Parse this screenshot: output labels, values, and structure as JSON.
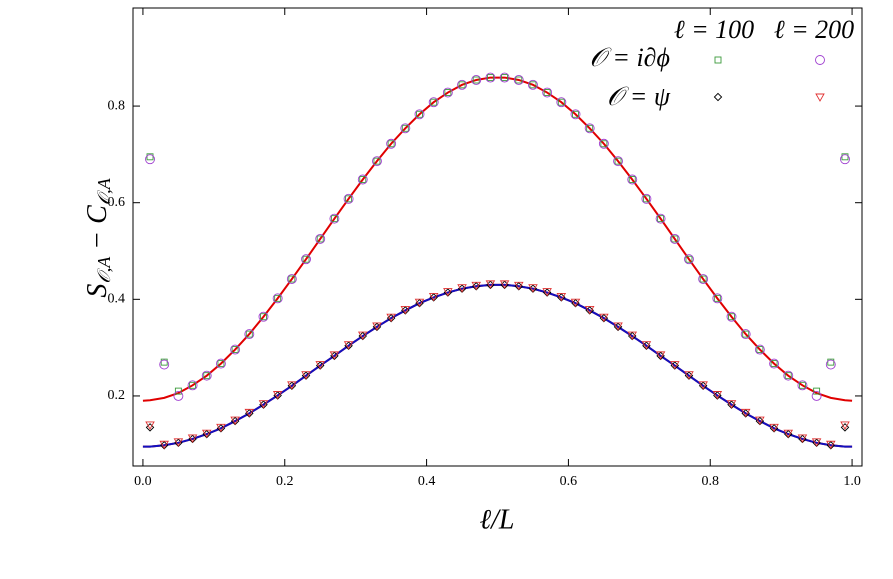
{
  "chart_data": {
    "type": "scatter",
    "xlabel": "ℓ/L",
    "ylabel": [
      "S",
      "𝒪,A",
      " − C",
      "𝒪,A"
    ],
    "legend": {
      "columns": [
        "ℓ = 100",
        "ℓ = 200"
      ],
      "rows": [
        "𝒪 = i∂ϕ",
        "𝒪 = ψ"
      ]
    },
    "xlim": [
      -0.014,
      1.014
    ],
    "ylim": [
      0.055,
      1.003
    ],
    "xticks": [
      {
        "value": 0,
        "label": "0.0"
      },
      0.2,
      0.4,
      0.6,
      0.8,
      {
        "value": 1,
        "label": "1.0"
      }
    ],
    "yticks": [
      0.2,
      0.4,
      0.6,
      0.8
    ],
    "x": [
      0,
      0.01,
      0.03,
      0.05,
      0.07,
      0.09,
      0.11,
      0.13,
      0.15,
      0.17,
      0.19,
      0.21,
      0.23,
      0.25,
      0.27,
      0.29,
      0.31,
      0.33,
      0.35,
      0.37,
      0.39,
      0.41,
      0.43,
      0.45,
      0.47,
      0.49,
      0.51,
      0.53,
      0.55,
      0.57,
      0.59,
      0.61,
      0.63,
      0.65,
      0.67,
      0.69,
      0.71,
      0.73,
      0.75,
      0.77,
      0.79,
      0.81,
      0.83,
      0.85,
      0.87,
      0.89,
      0.91,
      0.93,
      0.95,
      0.97,
      0.99,
      1
    ],
    "series": [
      {
        "kind": "line",
        "color": "#e00000",
        "values": [
          0.19,
          0.191,
          0.196,
          0.206,
          0.222,
          0.242,
          0.267,
          0.296,
          0.328,
          0.364,
          0.402,
          0.442,
          0.483,
          0.525,
          0.567,
          0.608,
          0.648,
          0.686,
          0.722,
          0.754,
          0.783,
          0.808,
          0.828,
          0.844,
          0.854,
          0.859,
          0.859,
          0.854,
          0.844,
          0.828,
          0.808,
          0.783,
          0.754,
          0.722,
          0.686,
          0.648,
          0.608,
          0.567,
          0.525,
          0.483,
          0.442,
          0.402,
          0.364,
          0.328,
          0.296,
          0.267,
          0.242,
          0.222,
          0.206,
          0.196,
          0.191,
          0.19
        ]
      },
      {
        "kind": "line",
        "color": "#e00000",
        "values": [
          0.095,
          0.095,
          0.098,
          0.103,
          0.111,
          0.121,
          0.133,
          0.148,
          0.164,
          0.182,
          0.201,
          0.221,
          0.242,
          0.263,
          0.283,
          0.304,
          0.324,
          0.343,
          0.361,
          0.377,
          0.392,
          0.404,
          0.414,
          0.422,
          0.427,
          0.43,
          0.43,
          0.427,
          0.422,
          0.414,
          0.404,
          0.392,
          0.377,
          0.361,
          0.343,
          0.324,
          0.304,
          0.283,
          0.263,
          0.242,
          0.221,
          0.201,
          0.182,
          0.164,
          0.148,
          0.133,
          0.121,
          0.111,
          0.103,
          0.098,
          0.095,
          0.095
        ]
      },
      {
        "kind": "line",
        "color": "#1010c0",
        "values": [
          0.095,
          0.095,
          0.098,
          0.103,
          0.111,
          0.121,
          0.133,
          0.148,
          0.164,
          0.182,
          0.201,
          0.221,
          0.242,
          0.263,
          0.283,
          0.304,
          0.324,
          0.343,
          0.361,
          0.377,
          0.392,
          0.404,
          0.414,
          0.422,
          0.427,
          0.43,
          0.43,
          0.427,
          0.422,
          0.414,
          0.404,
          0.392,
          0.377,
          0.361,
          0.343,
          0.324,
          0.304,
          0.283,
          0.263,
          0.242,
          0.221,
          0.201,
          0.182,
          0.164,
          0.148,
          0.133,
          0.121,
          0.111,
          0.103,
          0.098,
          0.095,
          0.095
        ]
      },
      {
        "kind": "square",
        "color": "#3a9a3a",
        "values": [
          null,
          0.695,
          0.27,
          0.21,
          0.222,
          0.242,
          0.267,
          0.296,
          0.328,
          0.364,
          0.402,
          0.442,
          0.483,
          0.525,
          0.567,
          0.608,
          0.648,
          0.686,
          0.722,
          0.754,
          0.783,
          0.808,
          0.828,
          0.844,
          0.854,
          0.859,
          0.859,
          0.854,
          0.844,
          0.828,
          0.808,
          0.783,
          0.754,
          0.722,
          0.686,
          0.648,
          0.608,
          0.567,
          0.525,
          0.483,
          0.442,
          0.402,
          0.364,
          0.328,
          0.296,
          0.267,
          0.242,
          0.222,
          0.21,
          0.27,
          0.695,
          null
        ]
      },
      {
        "kind": "circle",
        "color": "#a040d0",
        "values": [
          null,
          0.69,
          0.265,
          0.2,
          0.222,
          0.242,
          0.267,
          0.296,
          0.328,
          0.364,
          0.402,
          0.442,
          0.483,
          0.525,
          0.567,
          0.608,
          0.648,
          0.686,
          0.722,
          0.754,
          0.783,
          0.808,
          0.828,
          0.844,
          0.854,
          0.859,
          0.859,
          0.854,
          0.844,
          0.828,
          0.808,
          0.783,
          0.754,
          0.722,
          0.686,
          0.648,
          0.608,
          0.567,
          0.525,
          0.483,
          0.442,
          0.402,
          0.364,
          0.328,
          0.296,
          0.267,
          0.242,
          0.222,
          0.2,
          0.265,
          0.69,
          null
        ]
      },
      {
        "kind": "diamond",
        "color": "#000000",
        "values": [
          null,
          0.135,
          0.098,
          0.103,
          0.111,
          0.121,
          0.133,
          0.148,
          0.164,
          0.182,
          0.201,
          0.221,
          0.242,
          0.263,
          0.283,
          0.304,
          0.324,
          0.343,
          0.361,
          0.377,
          0.392,
          0.404,
          0.414,
          0.422,
          0.427,
          0.43,
          0.43,
          0.427,
          0.422,
          0.414,
          0.404,
          0.392,
          0.377,
          0.361,
          0.343,
          0.324,
          0.304,
          0.283,
          0.263,
          0.242,
          0.221,
          0.201,
          0.182,
          0.164,
          0.148,
          0.133,
          0.121,
          0.111,
          0.103,
          0.098,
          0.135,
          null
        ]
      },
      {
        "kind": "triangle",
        "color": "#e03030",
        "values": [
          null,
          0.14,
          0.1,
          0.105,
          0.113,
          0.123,
          0.135,
          0.15,
          0.166,
          0.184,
          0.203,
          0.223,
          0.244,
          0.265,
          0.285,
          0.306,
          0.326,
          0.345,
          0.363,
          0.379,
          0.394,
          0.406,
          0.416,
          0.424,
          0.429,
          0.432,
          0.432,
          0.429,
          0.424,
          0.416,
          0.406,
          0.394,
          0.379,
          0.363,
          0.345,
          0.326,
          0.306,
          0.285,
          0.265,
          0.244,
          0.223,
          0.203,
          0.184,
          0.166,
          0.15,
          0.135,
          0.123,
          0.113,
          0.105,
          0.1,
          0.14,
          null
        ]
      }
    ]
  }
}
